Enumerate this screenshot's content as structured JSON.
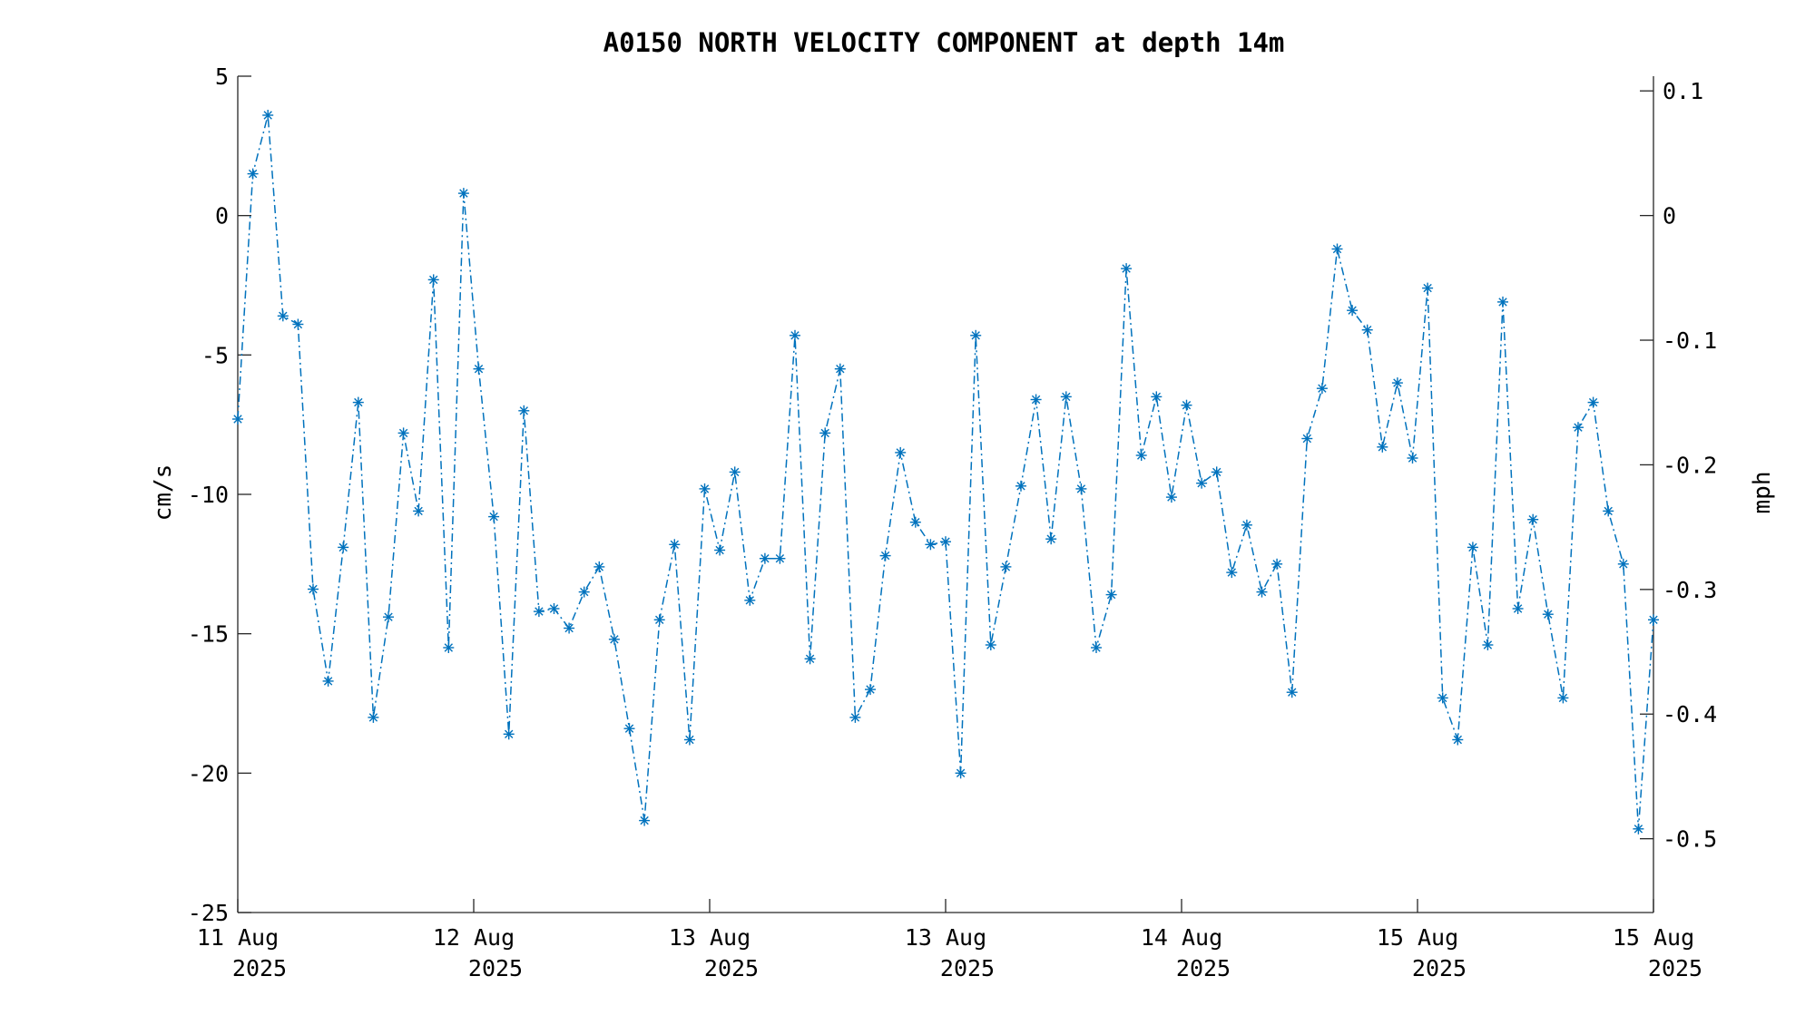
{
  "chart_data": {
    "type": "line",
    "title": "A0150 NORTH VELOCITY COMPONENT at depth 14m",
    "ylabel": "cm/s",
    "y2label": "mph",
    "ylim": [
      -25,
      5
    ],
    "y2lim": [
      -0.5592,
      0.1118
    ],
    "yticks": [
      "5",
      "0",
      "-5",
      "-10",
      "-15",
      "-20",
      "-25"
    ],
    "y2ticks": [
      "0.1",
      "0",
      "-0.1",
      "-0.2",
      "-0.3",
      "-0.4",
      "-0.5"
    ],
    "xticks": [
      {
        "line1": "11 Aug",
        "line2": "2025"
      },
      {
        "line1": "12 Aug",
        "line2": "2025"
      },
      {
        "line1": "13 Aug",
        "line2": "2025"
      },
      {
        "line1": "13 Aug",
        "line2": "2025"
      },
      {
        "line1": "14 Aug",
        "line2": "2025"
      },
      {
        "line1": "15 Aug",
        "line2": "2025"
      },
      {
        "line1": "15 Aug",
        "line2": "2025"
      }
    ],
    "grid": false,
    "line_style": "dash-dot",
    "marker": "asterisk",
    "series_color": "#0072BD",
    "series": [
      {
        "values": [
          -7.3,
          1.5,
          3.6,
          -3.6,
          -3.9,
          -13.4,
          -16.7,
          -11.9,
          -6.7,
          -18.0,
          -14.4,
          -7.8,
          -10.6,
          -2.3,
          -15.5,
          0.8,
          -5.5,
          -10.8,
          -18.6,
          -7.0,
          -14.2,
          -14.1,
          -14.8,
          -13.5,
          -12.6,
          -15.2,
          -18.4,
          -21.7,
          -14.5,
          -11.8,
          -18.8,
          -9.8,
          -12.0,
          -9.2,
          -13.8,
          -12.3,
          -12.3,
          -4.3,
          -15.9,
          -7.8,
          -5.5,
          -18.0,
          -17.0,
          -12.2,
          -8.5,
          -11.0,
          -11.8,
          -11.7,
          -20.0,
          -4.3,
          -15.4,
          -12.6,
          -9.7,
          -6.6,
          -11.6,
          -6.5,
          -9.8,
          -15.5,
          -13.6,
          -1.9,
          -8.6,
          -6.5,
          -10.1,
          -6.8,
          -9.6,
          -9.2,
          -12.8,
          -11.1,
          -13.5,
          -12.5,
          -17.1,
          -8.0,
          -6.2,
          -1.2,
          -3.4,
          -4.1,
          -8.3,
          -6.0,
          -8.7,
          -2.6,
          -17.3,
          -18.8,
          -11.9,
          -15.4,
          -3.1,
          -14.1,
          -10.9,
          -14.3,
          -17.3,
          -7.6,
          -6.7,
          -10.6,
          -12.5,
          -22.0,
          -14.5
        ]
      }
    ]
  }
}
